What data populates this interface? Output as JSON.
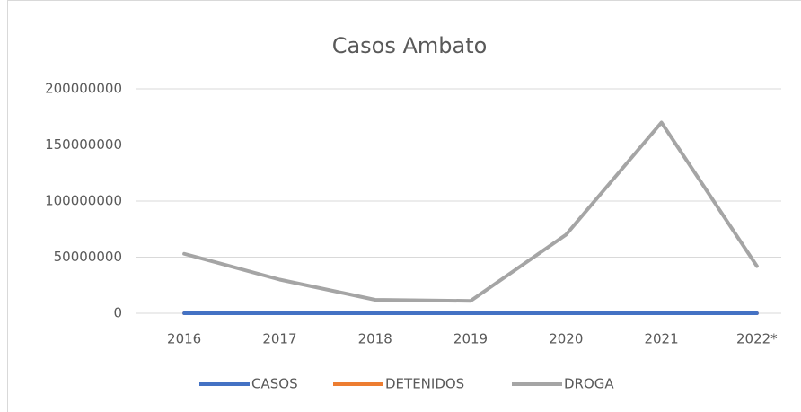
{
  "chart_data": {
    "type": "line",
    "title": "Casos Ambato",
    "categories": [
      "2016",
      "2017",
      "2018",
      "2019",
      "2020",
      "2021",
      "2022*"
    ],
    "series": [
      {
        "name": "CASOS",
        "color": "#4472c4",
        "values": [
          0,
          0,
          0,
          0,
          0,
          0,
          0
        ]
      },
      {
        "name": "DETENIDOS",
        "color": "#ed7d31",
        "values": [
          0,
          0,
          0,
          0,
          0,
          0,
          0
        ]
      },
      {
        "name": "DROGA",
        "color": "#a5a5a5",
        "values": [
          53000000,
          30000000,
          12000000,
          11000000,
          70000000,
          170000000,
          42000000
        ]
      }
    ],
    "ylim": [
      0,
      200000000
    ],
    "yticks": [
      0,
      50000000,
      100000000,
      150000000,
      200000000
    ],
    "grid": true,
    "legend": "bottom"
  }
}
